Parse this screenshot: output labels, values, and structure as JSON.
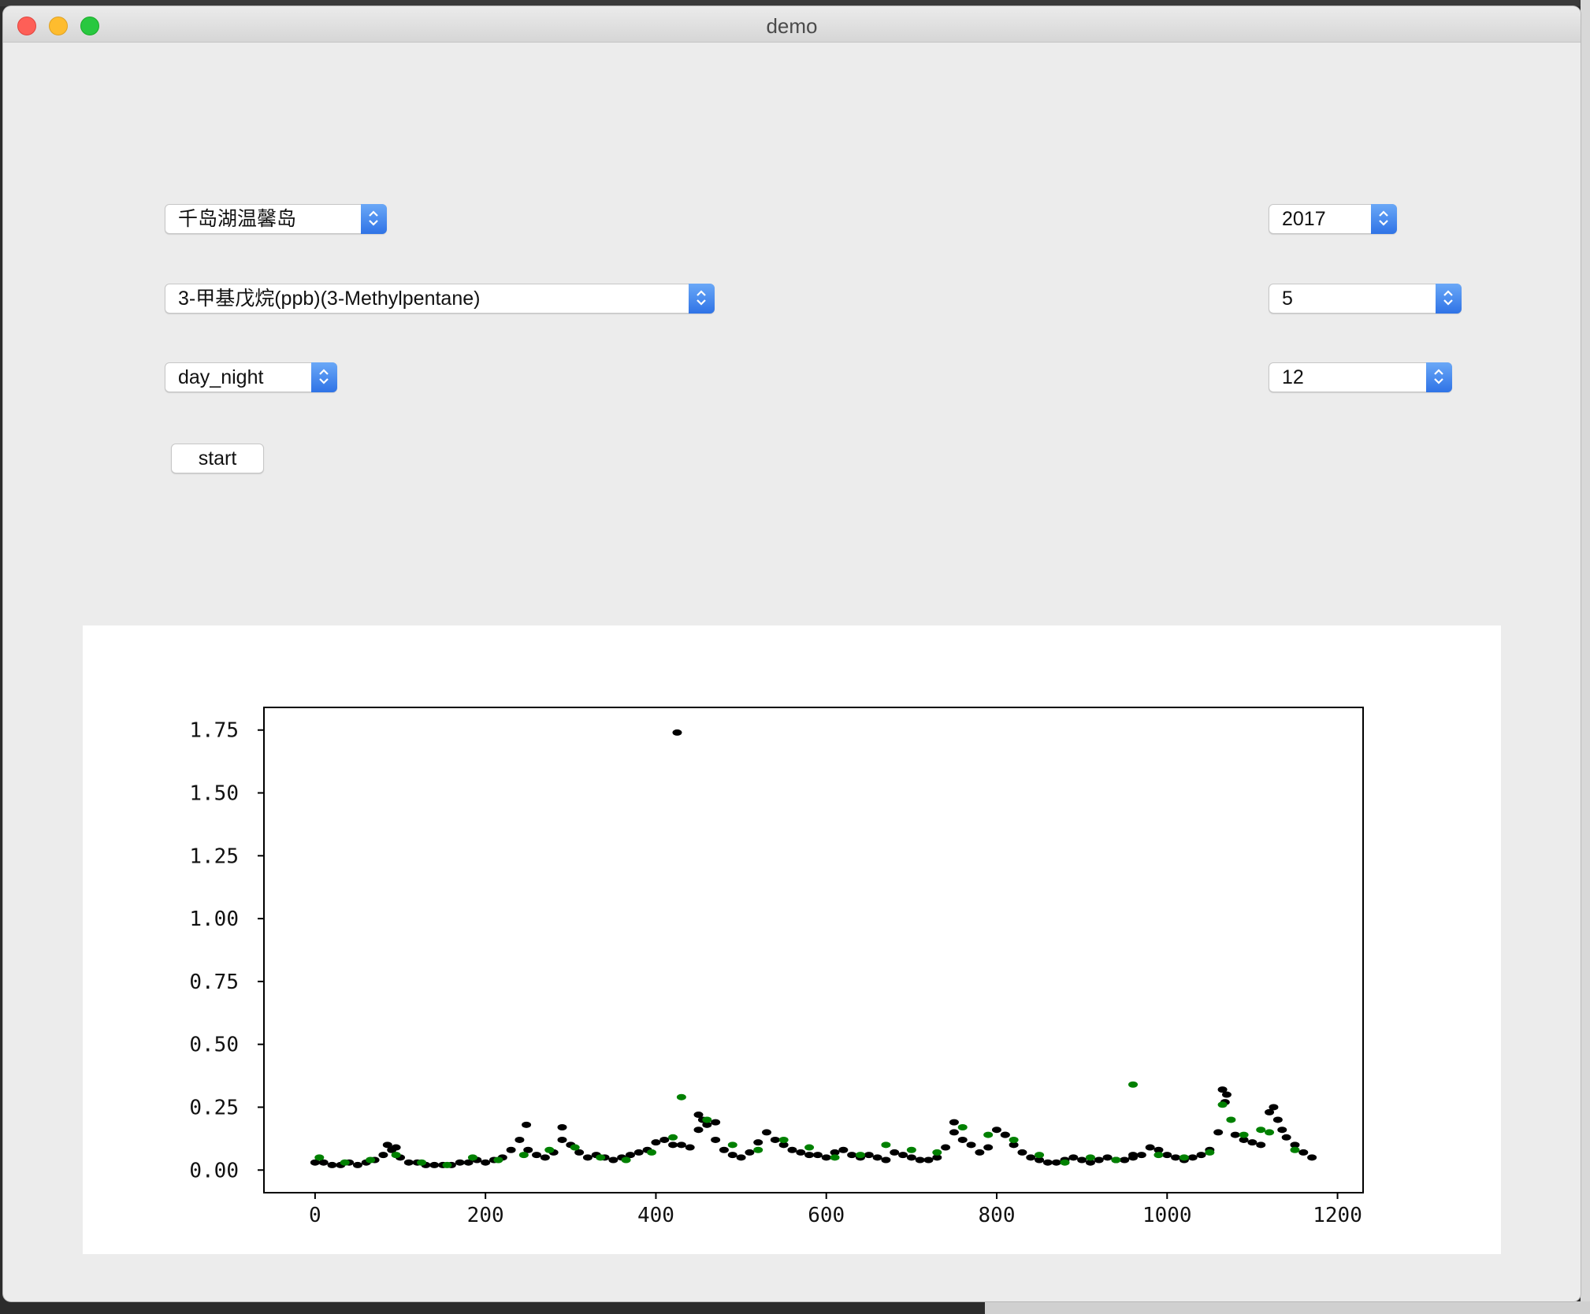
{
  "window": {
    "title": "demo"
  },
  "controls": {
    "site_select": {
      "value": "千岛湖温馨岛"
    },
    "compound_select": {
      "value": "3-甲基戊烷(ppb)(3-Methylpentane)"
    },
    "mode_select": {
      "value": "day_night"
    },
    "year_select": {
      "value": "2017"
    },
    "month_select": {
      "value": "5"
    },
    "day_select": {
      "value": "12"
    },
    "start_button": {
      "label": "start"
    }
  },
  "chart_data": {
    "type": "scatter",
    "title": "",
    "xlabel": "",
    "ylabel": "",
    "xlim": [
      -60,
      1230
    ],
    "ylim": [
      -0.09,
      1.84
    ],
    "xticks": [
      0,
      200,
      400,
      600,
      800,
      1000,
      1200
    ],
    "yticks": [
      0.0,
      0.25,
      0.5,
      0.75,
      1.0,
      1.25,
      1.5,
      1.75
    ],
    "xtick_labels": [
      "0",
      "200",
      "400",
      "600",
      "800",
      "1000",
      "1200"
    ],
    "ytick_labels": [
      "0.00",
      "0.25",
      "0.50",
      "0.75",
      "1.00",
      "1.25",
      "1.50",
      "1.75"
    ],
    "grid": false,
    "series": [
      {
        "color": "#000000",
        "x": [
          0,
          10,
          20,
          30,
          40,
          50,
          60,
          70,
          80,
          90,
          100,
          110,
          120,
          130,
          140,
          150,
          160,
          170,
          180,
          190,
          200,
          210,
          220,
          230,
          240,
          250,
          260,
          270,
          280,
          290,
          300,
          310,
          320,
          330,
          340,
          350,
          360,
          370,
          380,
          390,
          400,
          410,
          420,
          430,
          440,
          450,
          460,
          470,
          480,
          490,
          500,
          510,
          520,
          530,
          540,
          550,
          560,
          570,
          580,
          590,
          600,
          610,
          620,
          630,
          640,
          650,
          660,
          670,
          680,
          690,
          700,
          710,
          720,
          730,
          740,
          750,
          760,
          770,
          780,
          790,
          800,
          810,
          820,
          830,
          840,
          850,
          860,
          870,
          880,
          890,
          900,
          910,
          920,
          930,
          940,
          950,
          960,
          970,
          980,
          990,
          1000,
          1010,
          1020,
          1030,
          1040,
          1050,
          1060,
          1070,
          1080,
          1090,
          1100,
          1110,
          1120,
          1130,
          1140,
          1150,
          1160,
          1170,
          425,
          248,
          290,
          455,
          470,
          1065,
          1068,
          1125,
          1135,
          750,
          810,
          960,
          85,
          95,
          450
        ],
        "y": [
          0.03,
          0.03,
          0.02,
          0.02,
          0.03,
          0.02,
          0.03,
          0.04,
          0.06,
          0.08,
          0.05,
          0.03,
          0.03,
          0.02,
          0.02,
          0.02,
          0.02,
          0.03,
          0.03,
          0.04,
          0.03,
          0.04,
          0.05,
          0.08,
          0.12,
          0.08,
          0.06,
          0.05,
          0.07,
          0.12,
          0.1,
          0.07,
          0.05,
          0.06,
          0.05,
          0.04,
          0.05,
          0.06,
          0.07,
          0.08,
          0.11,
          0.12,
          0.1,
          0.1,
          0.09,
          0.16,
          0.18,
          0.12,
          0.08,
          0.06,
          0.05,
          0.07,
          0.11,
          0.15,
          0.12,
          0.1,
          0.08,
          0.07,
          0.06,
          0.06,
          0.05,
          0.07,
          0.08,
          0.06,
          0.05,
          0.06,
          0.05,
          0.04,
          0.07,
          0.06,
          0.05,
          0.04,
          0.04,
          0.05,
          0.09,
          0.15,
          0.12,
          0.1,
          0.07,
          0.09,
          0.16,
          0.14,
          0.1,
          0.07,
          0.05,
          0.04,
          0.03,
          0.03,
          0.04,
          0.05,
          0.04,
          0.03,
          0.04,
          0.05,
          0.04,
          0.04,
          0.05,
          0.06,
          0.09,
          0.08,
          0.06,
          0.05,
          0.04,
          0.05,
          0.06,
          0.08,
          0.15,
          0.3,
          0.14,
          0.12,
          0.11,
          0.1,
          0.23,
          0.2,
          0.13,
          0.1,
          0.07,
          0.05,
          1.74,
          0.18,
          0.17,
          0.2,
          0.19,
          0.32,
          0.27,
          0.25,
          0.16,
          0.19,
          0.14,
          0.06,
          0.1,
          0.09,
          0.22
        ]
      },
      {
        "color": "#008000",
        "x": [
          5,
          35,
          65,
          95,
          125,
          155,
          185,
          215,
          245,
          275,
          305,
          335,
          365,
          395,
          420,
          430,
          460,
          490,
          520,
          550,
          580,
          610,
          640,
          670,
          700,
          730,
          760,
          790,
          820,
          850,
          880,
          910,
          940,
          960,
          990,
          1020,
          1050,
          1065,
          1075,
          1090,
          1110,
          1120,
          1150
        ],
        "y": [
          0.05,
          0.03,
          0.04,
          0.06,
          0.03,
          0.02,
          0.05,
          0.04,
          0.06,
          0.08,
          0.09,
          0.05,
          0.04,
          0.07,
          0.13,
          0.29,
          0.2,
          0.1,
          0.08,
          0.12,
          0.09,
          0.05,
          0.06,
          0.1,
          0.08,
          0.07,
          0.17,
          0.14,
          0.12,
          0.06,
          0.03,
          0.05,
          0.04,
          0.34,
          0.06,
          0.05,
          0.07,
          0.26,
          0.2,
          0.14,
          0.16,
          0.15,
          0.08
        ]
      }
    ]
  }
}
